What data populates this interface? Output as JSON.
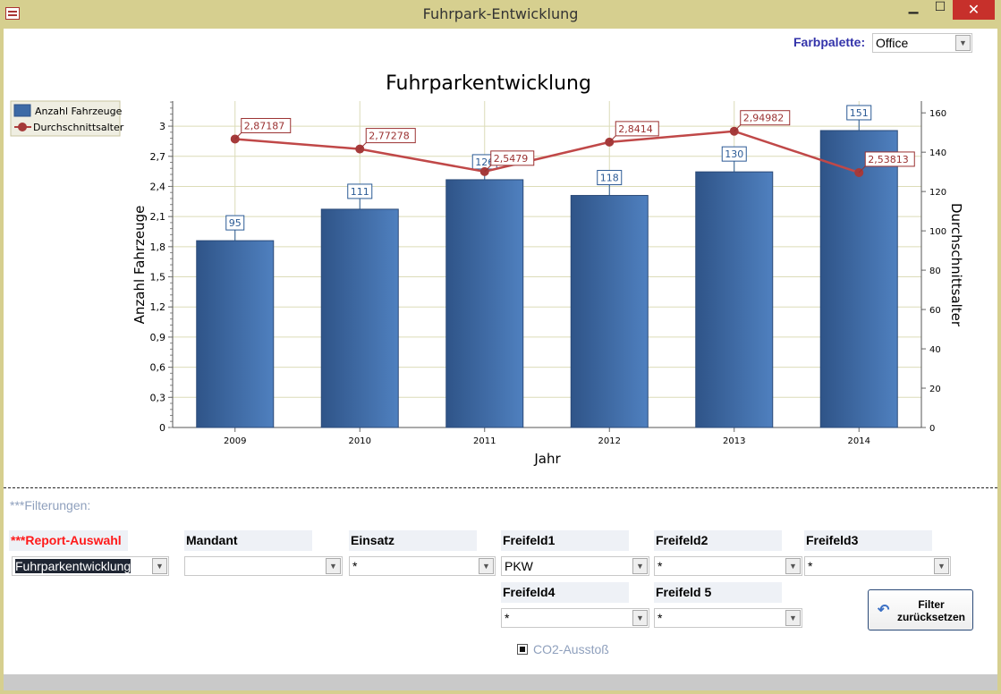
{
  "window": {
    "title": "Fuhrpark-Entwicklung",
    "minimize": "▁",
    "maximize": "☐",
    "close": "✕"
  },
  "palette": {
    "label": "Farbpalette:",
    "value": "Office"
  },
  "chart_data": {
    "type": "bar+line",
    "title": "Fuhrparkentwicklung",
    "xlabel": "Jahr",
    "ylabel": "Anzahl Fahrzeuge",
    "y2label": "Durchschnittsalter",
    "categories": [
      "2009",
      "2010",
      "2011",
      "2012",
      "2013",
      "2014"
    ],
    "series": [
      {
        "name": "Anzahl Fahrzeuge",
        "type": "bar",
        "axis": "right",
        "values": [
          95,
          111,
          126,
          118,
          130,
          151
        ],
        "labels": [
          "95",
          "111",
          "126",
          "118",
          "130",
          "151"
        ],
        "color": "#3d6aa6"
      },
      {
        "name": "Durchschnittsalter",
        "type": "line",
        "axis": "left",
        "values": [
          2.87187,
          2.77278,
          2.5479,
          2.8414,
          2.94982,
          2.53813
        ],
        "labels": [
          "2,87187",
          "2,77278",
          "2,5479",
          "2,8414",
          "2,94982",
          "2,53813"
        ],
        "color": "#b04040"
      }
    ],
    "yticks": [
      "0",
      "0,3",
      "0,6",
      "0,9",
      "1,2",
      "1,5",
      "1,8",
      "2,1",
      "2,4",
      "2,7",
      "3"
    ],
    "ylim": [
      0,
      3.25
    ],
    "y2ticks": [
      "0",
      "20",
      "40",
      "60",
      "80",
      "100",
      "120",
      "140",
      "160"
    ],
    "y2lim": [
      0,
      166
    ],
    "legend": "top-left",
    "grid": true
  },
  "filters": {
    "section_label": "***Filterungen:",
    "report": {
      "label": "***Report-Auswahl",
      "value": "Fuhrparkentwicklung"
    },
    "mandant": {
      "label": "Mandant",
      "value": ""
    },
    "einsatz": {
      "label": "Einsatz",
      "value": "*"
    },
    "freifeld1": {
      "label": "Freifeld1",
      "value": "PKW"
    },
    "freifeld2": {
      "label": "Freifeld2",
      "value": "*"
    },
    "freifeld3": {
      "label": "Freifeld3",
      "value": "*"
    },
    "freifeld4": {
      "label": "Freifeld4",
      "value": "*"
    },
    "freifeld5": {
      "label": "Freifeld 5",
      "value": "*"
    },
    "reset_button": "Filter zurücksetzen",
    "co2": {
      "label": "CO2-Ausstoß",
      "checked": true
    }
  }
}
